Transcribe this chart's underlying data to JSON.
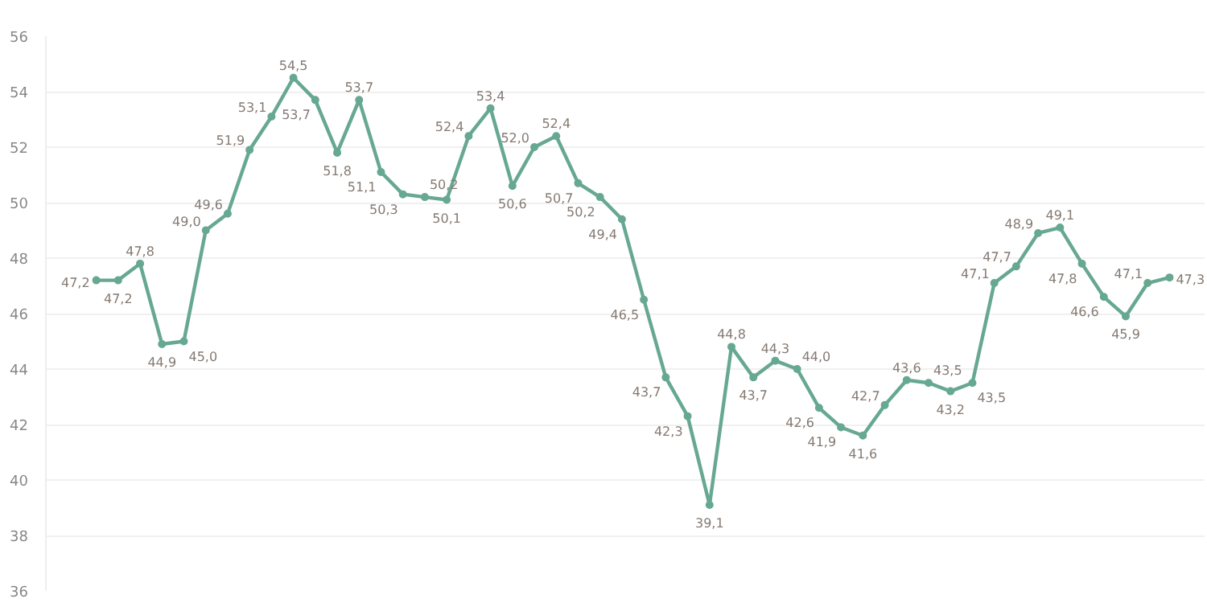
{
  "chart_data": {
    "type": "line",
    "categories": [
      null,
      null,
      null,
      null,
      null,
      null,
      null,
      null,
      null,
      null,
      null,
      null,
      null,
      null,
      null,
      null,
      null,
      null,
      null,
      null,
      null,
      null,
      null,
      null,
      null,
      null,
      null,
      null,
      null,
      null,
      null,
      null,
      null,
      null,
      null,
      null,
      null,
      null,
      null,
      null,
      null,
      null,
      null,
      null,
      null,
      null,
      null,
      null,
      null,
      null
    ],
    "series": [
      {
        "color": "#67a892",
        "values": [
          47.2,
          47.2,
          47.8,
          44.9,
          45.0,
          49.0,
          49.6,
          51.9,
          53.1,
          54.5,
          53.7,
          51.8,
          53.7,
          51.1,
          50.3,
          50.2,
          50.1,
          52.4,
          53.4,
          50.6,
          52.0,
          52.4,
          50.7,
          50.2,
          49.4,
          46.5,
          43.7,
          42.3,
          39.1,
          44.8,
          43.7,
          44.3,
          44.0,
          42.6,
          41.9,
          41.6,
          42.7,
          43.6,
          43.5,
          43.2,
          43.5,
          47.1,
          47.7,
          48.9,
          49.1,
          47.8,
          46.6,
          45.9,
          47.1,
          47.3
        ],
        "value_labels": [
          "47,2",
          "47,2",
          "47,8",
          "44,9",
          "45,0",
          "49,0",
          "49,6",
          "51,9",
          "53,1",
          "54,5",
          "53,7",
          "51,8",
          "53,7",
          "51,1",
          "50,3",
          "50,2",
          "50,1",
          "52,4",
          "53,4",
          "50,6",
          "52,0",
          "52,4",
          "50,7",
          "50,2",
          "49,4",
          "46,5",
          "43,7",
          "42,3",
          "39,1",
          "44,8",
          "43,7",
          "44,3",
          "44,0",
          "42,6",
          "41,9",
          "41,6",
          "42,7",
          "43,6",
          "43,5",
          "43,2",
          "43,5",
          "47,1",
          "47,7",
          "48,9",
          "49,1",
          "47,8",
          "46,6",
          "45,9",
          "47,1",
          "47,3"
        ]
      }
    ],
    "ylim": [
      36,
      56
    ],
    "yticks": [
      36,
      38,
      40,
      42,
      44,
      46,
      48,
      50,
      52,
      54,
      56
    ],
    "grid": "y",
    "marker": "circle",
    "line_style": "solid",
    "tick_labels": "y"
  }
}
